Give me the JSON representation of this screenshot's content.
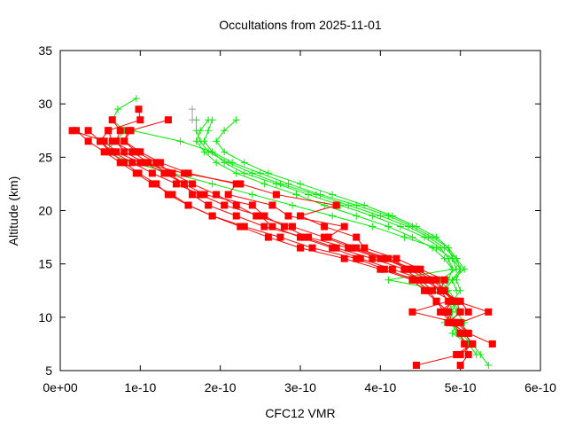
{
  "chart_data": {
    "type": "line",
    "title": "Occultations from 2025-11-01",
    "xlabel": "CFC12 VMR",
    "ylabel": "Altitude (km)",
    "xlim": [
      0,
      6e-10
    ],
    "ylim": [
      5,
      35
    ],
    "xticks": [
      0,
      1e-10,
      2e-10,
      3e-10,
      4e-10,
      5e-10,
      6e-10
    ],
    "xtick_labels": [
      "0e+00",
      "1e-10",
      "2e-10",
      "3e-10",
      "4e-10",
      "5e-10",
      "6e-10"
    ],
    "yticks": [
      5,
      10,
      15,
      20,
      25,
      30,
      35
    ],
    "ytick_labels": [
      "5",
      "10",
      "15",
      "20",
      "25",
      "30",
      "35"
    ],
    "grid": false,
    "legend": "none",
    "colors": {
      "red": "#ff0000",
      "green": "#00ee00",
      "gray": "#a0a0a0"
    },
    "series": [
      {
        "color": "red",
        "marker": "square",
        "alt": [
          29.5,
          28.5,
          27.5,
          26.5,
          25.5,
          24.5,
          23.5,
          22.5,
          21.5,
          20.5,
          19.5,
          18.5,
          17.5,
          16.5,
          15.5,
          14.5,
          13.5,
          12.5,
          11.5,
          10.5,
          9.5,
          8.5,
          7.5,
          6.5,
          5.5
        ],
        "x": [
          9.8e-11,
          1e-10,
          6e-11,
          5e-11,
          6.2e-11,
          8e-11,
          9.8e-11,
          1.2e-10,
          1.35e-10,
          1.6e-10,
          1.9e-10,
          2.3e-10,
          2.75e-10,
          3.15e-10,
          3.7e-10,
          4.05e-10,
          4.45e-10,
          4.6e-10,
          4.7e-10,
          4.85e-10,
          4.9e-10,
          5e-10,
          5.05e-10,
          5.1e-10,
          5e-10
        ]
      },
      {
        "color": "red",
        "marker": "square",
        "alt": [
          28.5,
          27.5,
          26.5,
          25.5,
          24.5,
          23.5,
          22.5,
          21.5,
          20.5,
          19.5,
          18.5,
          17.5,
          16.5,
          15.5,
          14.5,
          13.5,
          12.5,
          11.5,
          10.5,
          9.5,
          8.5,
          7.5
        ],
        "x": [
          1.35e-10,
          8.8e-11,
          8e-11,
          9.5e-11,
          1.2e-10,
          1.4e-10,
          1.65e-10,
          1.95e-10,
          2.2e-10,
          2.45e-10,
          2.9e-10,
          3.3e-10,
          3.65e-10,
          4.05e-10,
          4.35e-10,
          4.6e-10,
          4.75e-10,
          4.95e-10,
          5.35e-10,
          5e-10,
          5.1e-10,
          5.4e-10
        ]
      },
      {
        "color": "red",
        "marker": "square",
        "alt": [
          27.5,
          26.5,
          25.5,
          24.5,
          23.5,
          22.5,
          21.5,
          20.5,
          19.5,
          18.5,
          17.5,
          16.5,
          15.5,
          14.5,
          13.5,
          12.5,
          11.5,
          10.5,
          9.5,
          8.5,
          7.5,
          6.5,
          5.5
        ],
        "x": [
          2e-11,
          3.5e-11,
          5.5e-11,
          7.5e-11,
          9.5e-11,
          1.15e-10,
          1.4e-10,
          1.6e-10,
          1.9e-10,
          2.25e-10,
          2.6e-10,
          3e-10,
          3.55e-10,
          4e-10,
          4.4e-10,
          4.55e-10,
          4.7e-10,
          4.8e-10,
          4.9e-10,
          5.05e-10,
          5.15e-10,
          5e-10,
          4.45e-10
        ]
      },
      {
        "color": "red",
        "marker": "square",
        "alt": [
          28.5,
          27.5,
          26.5,
          25.5,
          24.5,
          23.5,
          22.5,
          21.5,
          20.5,
          19.5,
          18.5,
          17.5,
          16.5,
          15.5,
          14.5,
          13.5,
          12.5,
          11.5,
          10.5,
          9.5,
          8.5,
          7.5,
          6.5
        ],
        "x": [
          6.5e-11,
          7.5e-11,
          7e-11,
          8e-11,
          1.05e-10,
          1.3e-10,
          1.55e-10,
          1.65e-10,
          1.85e-10,
          2.2e-10,
          2.55e-10,
          3.05e-10,
          3.45e-10,
          3.9e-10,
          4.3e-10,
          4.5e-10,
          4.65e-10,
          4.9e-10,
          4.75e-10,
          4.9e-10,
          5.05e-10,
          5.15e-10,
          4.95e-10
        ]
      },
      {
        "color": "red",
        "marker": "square",
        "alt": [
          27.5,
          26.5,
          25.5,
          24.5,
          23.5,
          22.5,
          21.5,
          20.5,
          19.5,
          18.5,
          17.5,
          16.5,
          15.5,
          14.5,
          13.5,
          12.5,
          11.5,
          10.5,
          9.5,
          8.5
        ],
        "x": [
          3.5e-11,
          5e-11,
          6.5e-11,
          9e-11,
          1.15e-10,
          1.45e-10,
          1.75e-10,
          2.05e-10,
          2.5e-10,
          2.65e-10,
          3e-10,
          3.4e-10,
          3.75e-10,
          4.15e-10,
          4.55e-10,
          4.75e-10,
          4.85e-10,
          4.4e-10,
          4.95e-10,
          5.1e-10
        ]
      },
      {
        "color": "red",
        "marker": "square",
        "alt": [
          27.5,
          26.5,
          25.5,
          24.5,
          23.5,
          22.5,
          21.5,
          20.5,
          19.5,
          18.5,
          17.5,
          16.5,
          15.5,
          14.5,
          13.5,
          12.5,
          11.5,
          10.5,
          9.5
        ],
        "x": [
          8.5e-11,
          8e-11,
          1e-10,
          1.25e-10,
          1.6e-10,
          2.2e-10,
          2.1e-10,
          2.65e-10,
          2.85e-10,
          3.55e-10,
          3.35e-10,
          3.7e-10,
          4.1e-10,
          4.4e-10,
          4.65e-10,
          4.8e-10,
          4.95e-10,
          5e-10,
          4.85e-10
        ]
      },
      {
        "color": "red",
        "marker": "square",
        "alt": [
          27.5,
          26.5,
          25.5,
          24.5,
          23.5,
          22.5,
          21.5,
          20.5,
          19.5,
          18.5,
          17.5,
          16.5,
          15.5,
          14.5,
          13.5,
          12.5,
          11.5,
          10.5
        ],
        "x": [
          6e-11,
          6.5e-11,
          9e-11,
          1.1e-10,
          1.35e-10,
          1.55e-10,
          1.8e-10,
          2.4e-10,
          2.55e-10,
          2.8e-10,
          3.1e-10,
          3.6e-10,
          4e-10,
          4.45e-10,
          4.7e-10,
          4.8e-10,
          4.9e-10,
          4.8e-10
        ]
      },
      {
        "color": "red",
        "marker": "square",
        "alt": [
          27.5,
          26.5,
          25.5,
          24.5,
          23.5,
          22.5,
          21.5,
          20.5,
          19.5,
          18.5,
          17.5,
          16.5,
          15.5,
          14.5,
          13.5,
          12.5,
          11.5,
          10.5
        ],
        "x": [
          1.5e-11,
          5.5e-11,
          7e-11,
          1e-10,
          1.55e-10,
          2.25e-10,
          2.7e-10,
          3.45e-10,
          3e-10,
          3.3e-10,
          3.7e-10,
          3.8e-10,
          4.2e-10,
          4.5e-10,
          4.8e-10,
          4.75e-10,
          5e-10,
          5.1e-10
        ]
      },
      {
        "color": "green",
        "marker": "plus",
        "alt": [
          30.5,
          29.5,
          28.5,
          27.5,
          26.5,
          25.5,
          24.5,
          23.5,
          22.5,
          21.5,
          20.5,
          19.5,
          18.5,
          17.5,
          16.5,
          15.5,
          14.5,
          13.5,
          12.5,
          11.5,
          10.5,
          9.5,
          8.5,
          7.5,
          6.5,
          5.5
        ],
        "x": [
          9.5e-11,
          7.2e-11,
          6.5e-11,
          8e-11,
          7e-11,
          5.5e-11,
          9e-11,
          1.4e-10,
          1.9e-10,
          2.4e-10,
          2.9e-10,
          3.4e-10,
          3.9e-10,
          4.3e-10,
          4.7e-10,
          4.9e-10,
          5e-10,
          4.95e-10,
          5e-10,
          4.9e-10,
          4.95e-10,
          5.05e-10,
          5e-10,
          5.15e-10,
          5.25e-10,
          5.35e-10
        ]
      },
      {
        "color": "green",
        "marker": "plus",
        "alt": [
          28.5,
          27.5,
          26.5,
          25.5,
          24.5,
          23.5,
          22.5,
          21.5,
          20.5,
          19.5,
          18.5,
          17.5,
          16.5,
          15.5,
          14.5,
          13.5,
          12.5,
          11.5,
          10.5,
          9.5,
          8.5,
          7.5,
          6.5
        ],
        "x": [
          1.9e-10,
          1.85e-10,
          1.8e-10,
          1.9e-10,
          2.05e-10,
          2.3e-10,
          2.7e-10,
          3.1e-10,
          3.5e-10,
          3.9e-10,
          4.25e-10,
          4.55e-10,
          4.75e-10,
          4.85e-10,
          4.9e-10,
          4.85e-10,
          4.8e-10,
          4.9e-10,
          4.85e-10,
          4.95e-10,
          4.9e-10,
          5.1e-10,
          5.2e-10
        ]
      },
      {
        "color": "green",
        "marker": "plus",
        "alt": [
          28.5,
          27.5,
          26.5,
          25.5,
          24.5,
          23.5,
          22.5,
          21.5,
          20.5,
          19.5,
          18.5,
          17.5,
          16.5,
          15.5,
          14.5,
          13.5,
          12.5,
          11.5,
          10.5,
          9.5,
          8.5,
          7.5
        ],
        "x": [
          2.2e-10,
          2.05e-10,
          1.95e-10,
          2.05e-10,
          2.3e-10,
          2.6e-10,
          3e-10,
          3.4e-10,
          3.8e-10,
          4.15e-10,
          4.45e-10,
          4.7e-10,
          4.85e-10,
          4.95e-10,
          5.05e-10,
          4.9e-10,
          4.8e-10,
          4.95e-10,
          4.85e-10,
          4.9e-10,
          4.95e-10,
          5.1e-10
        ]
      },
      {
        "color": "green",
        "marker": "plus",
        "alt": [
          28.5,
          27.5,
          26.5,
          25.5,
          24.5,
          23.5,
          22.5,
          21.5,
          20.5,
          19.5,
          18.5,
          17.5,
          16.5,
          15.5,
          14.5,
          13.5,
          12.5,
          11.5,
          10.5,
          9.5,
          8.5
        ],
        "x": [
          1.85e-10,
          1.75e-10,
          1.7e-10,
          1.8e-10,
          1.95e-10,
          2.2e-10,
          2.55e-10,
          2.95e-10,
          3.3e-10,
          3.7e-10,
          4.1e-10,
          4.4e-10,
          4.65e-10,
          4.8e-10,
          4.9e-10,
          4.1e-10,
          4.8e-10,
          4.9e-10,
          5e-10,
          4.85e-10,
          5e-10
        ]
      },
      {
        "color": "green",
        "marker": "plus",
        "alt": [
          27.5,
          26.5,
          25.5,
          24.5,
          23.5,
          22.5,
          21.5,
          20.5,
          19.5,
          18.5,
          17.5,
          16.5,
          15.5,
          14.5,
          13.5,
          12.5,
          11.5,
          10.5,
          9.5
        ],
        "x": [
          9e-11,
          1.5e-10,
          1.9e-10,
          2.15e-10,
          2.5e-10,
          2.85e-10,
          3.25e-10,
          3.7e-10,
          4.1e-10,
          4.4e-10,
          4.65e-10,
          4.85e-10,
          4.9e-10,
          4.95e-10,
          4.75e-10,
          4.85e-10,
          4.95e-10,
          4.9e-10,
          4.8e-10
        ]
      },
      {
        "color": "green",
        "marker": "plus",
        "alt": [
          28.5,
          27.5,
          26.5,
          25.5,
          24.5,
          23.5,
          22.5,
          21.5,
          20.5,
          19.5,
          18.5,
          17.5,
          16.5,
          15.5,
          14.5,
          13.5,
          12.5
        ],
        "x": [
          1.7e-10,
          1.7e-10,
          1.75e-10,
          1.85e-10,
          2.1e-10,
          2.4e-10,
          2.75e-10,
          3.2e-10,
          3.6e-10,
          4e-10,
          4.35e-10,
          4.6e-10,
          4.8e-10,
          4.95e-10,
          5e-10,
          4.9e-10,
          4.95e-10
        ]
      },
      {
        "color": "gray",
        "marker": "plus",
        "alt": [
          29.5,
          28.5
        ],
        "x": [
          1.65e-10,
          1.65e-10
        ]
      }
    ]
  }
}
